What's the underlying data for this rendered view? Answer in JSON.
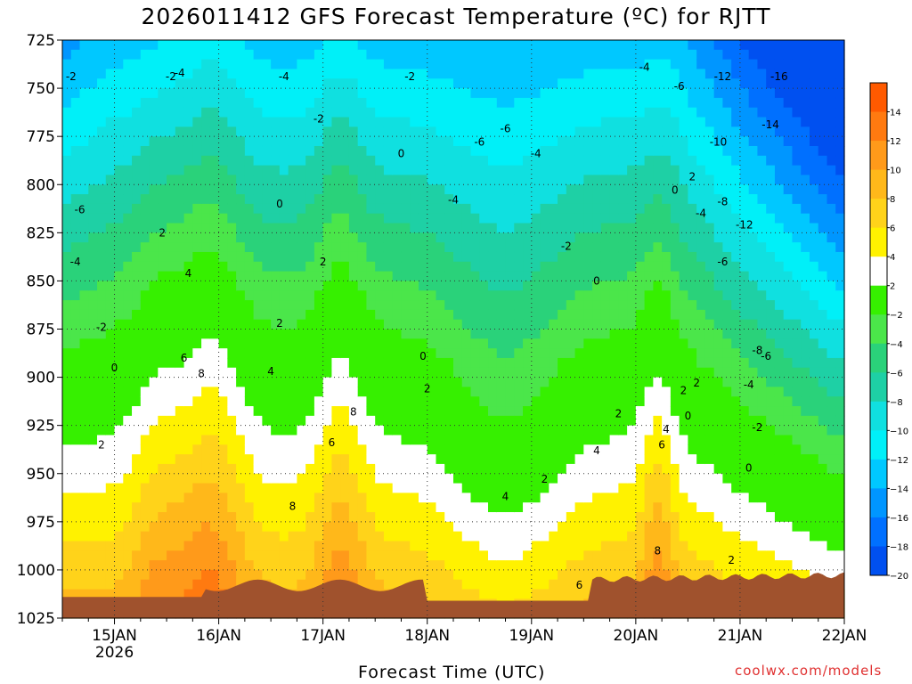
{
  "chart_data": {
    "type": "heatmap",
    "title": "2026011412 GFS Forecast Temperature (ºC) for RJTT",
    "xlabel": "Forecast Time (UTC)",
    "ylabel": "",
    "credit": "coolwx.com/models",
    "y_axis": {
      "scale": "pressure (hPa), inverted",
      "ticks": [
        725,
        750,
        775,
        800,
        825,
        850,
        875,
        900,
        925,
        950,
        975,
        1000,
        1025
      ],
      "ylim": [
        1025,
        725
      ]
    },
    "x_axis": {
      "ticks": [
        {
          "label": "15JAN",
          "sub": "2026",
          "hour": 0
        },
        {
          "label": "16JAN",
          "sub": "",
          "hour": 24
        },
        {
          "label": "17JAN",
          "sub": "",
          "hour": 48
        },
        {
          "label": "18JAN",
          "sub": "",
          "hour": 72
        },
        {
          "label": "19JAN",
          "sub": "",
          "hour": 96
        },
        {
          "label": "20JAN",
          "sub": "",
          "hour": 120
        },
        {
          "label": "21JAN",
          "sub": "",
          "hour": 144
        },
        {
          "label": "22JAN",
          "sub": "",
          "hour": 168
        }
      ],
      "xlim": [
        -12,
        168
      ]
    },
    "colorbar": {
      "levels": [
        -22,
        -20,
        -18,
        -16,
        -14,
        -12,
        -10,
        -8,
        -6,
        -4,
        -2,
        2,
        4,
        6,
        8,
        10,
        12,
        14,
        16
      ],
      "labels": [
        "14",
        "12",
        "10",
        "8",
        "6",
        "4",
        "2",
        "−2",
        "−4",
        "−6",
        "−8",
        "−10",
        "−12",
        "−14",
        "−16",
        "−18",
        "−20"
      ],
      "colors": [
        "#ff5a00",
        "#ff7a10",
        "#ff9a1a",
        "#ffb81a",
        "#ffd31a",
        "#fff200",
        "#ffffff",
        "#36f000",
        "#4be64a",
        "#2ad27a",
        "#1ed0a5",
        "#10e0e0",
        "#00f0f8",
        "#00c8ff",
        "#0096ff",
        "#0070ff",
        "#0050f0"
      ]
    },
    "grid": true,
    "contour_labels": [
      {
        "t": -10,
        "p": 744,
        "v": "-2"
      },
      {
        "t": 13,
        "p": 744,
        "v": "-2"
      },
      {
        "t": 15,
        "p": 742,
        "v": "-4"
      },
      {
        "t": 39,
        "p": 744,
        "v": "-4"
      },
      {
        "t": 68,
        "p": 744,
        "v": "-2"
      },
      {
        "t": 47,
        "p": 766,
        "v": "-2"
      },
      {
        "t": 66,
        "p": 784,
        "v": "0"
      },
      {
        "t": 38,
        "p": 810,
        "v": "0"
      },
      {
        "t": 78,
        "p": 808,
        "v": "-4"
      },
      {
        "t": 84,
        "p": 778,
        "v": "-6"
      },
      {
        "t": 90,
        "p": 771,
        "v": "-6"
      },
      {
        "t": 97,
        "p": 784,
        "v": "-4"
      },
      {
        "t": 122,
        "p": 739,
        "v": "-4"
      },
      {
        "t": 130,
        "p": 749,
        "v": "-6"
      },
      {
        "t": 140,
        "p": 744,
        "v": "-12"
      },
      {
        "t": 153,
        "p": 744,
        "v": "-16"
      },
      {
        "t": 151,
        "p": 769,
        "v": "-14"
      },
      {
        "t": 139,
        "p": 778,
        "v": "-10"
      },
      {
        "t": 129,
        "p": 803,
        "v": "0"
      },
      {
        "t": 133,
        "p": 796,
        "v": "2"
      },
      {
        "t": 140,
        "p": 809,
        "v": "-8"
      },
      {
        "t": 145,
        "p": 821,
        "v": "-12"
      },
      {
        "t": 135,
        "p": 815,
        "v": "-4"
      },
      {
        "t": 140,
        "p": 840,
        "v": "-6"
      },
      {
        "t": 104,
        "p": 832,
        "v": "-2"
      },
      {
        "t": 111,
        "p": 850,
        "v": "0"
      },
      {
        "t": 0,
        "p": 895,
        "v": "0"
      },
      {
        "t": -8,
        "p": 813,
        "v": "-6"
      },
      {
        "t": -9,
        "p": 840,
        "v": "-4"
      },
      {
        "t": -3,
        "p": 874,
        "v": "-2"
      },
      {
        "t": 11,
        "p": 825,
        "v": "2"
      },
      {
        "t": 17,
        "p": 846,
        "v": "4"
      },
      {
        "t": 16,
        "p": 890,
        "v": "6"
      },
      {
        "t": 20,
        "p": 898,
        "v": "8"
      },
      {
        "t": 38,
        "p": 872,
        "v": "2"
      },
      {
        "t": 48,
        "p": 840,
        "v": "2"
      },
      {
        "t": 36,
        "p": 897,
        "v": "4"
      },
      {
        "t": 50,
        "p": 934,
        "v": "6"
      },
      {
        "t": 55,
        "p": 918,
        "v": "8"
      },
      {
        "t": 41,
        "p": 967,
        "v": "8"
      },
      {
        "t": 72,
        "p": 906,
        "v": "2"
      },
      {
        "t": 71,
        "p": 889,
        "v": "0"
      },
      {
        "t": 90,
        "p": 962,
        "v": "4"
      },
      {
        "t": 99,
        "p": 953,
        "v": "2"
      },
      {
        "t": 116,
        "p": 919,
        "v": "2"
      },
      {
        "t": 111,
        "p": 938,
        "v": "4"
      },
      {
        "t": 127,
        "p": 927,
        "v": "4"
      },
      {
        "t": 126,
        "p": 935,
        "v": "6"
      },
      {
        "t": 125,
        "p": 990,
        "v": "8"
      },
      {
        "t": 107,
        "p": 1008,
        "v": "6"
      },
      {
        "t": 134,
        "p": 903,
        "v": "2"
      },
      {
        "t": 131,
        "p": 907,
        "v": "2"
      },
      {
        "t": 132,
        "p": 920,
        "v": "0"
      },
      {
        "t": 146,
        "p": 904,
        "v": "-4"
      },
      {
        "t": 148,
        "p": 926,
        "v": "-2"
      },
      {
        "t": 146,
        "p": 947,
        "v": "0"
      },
      {
        "t": 148,
        "p": 886,
        "v": "-8"
      },
      {
        "t": 150,
        "p": 889,
        "v": "-6"
      },
      {
        "t": 142,
        "p": 995,
        "v": "2"
      },
      {
        "t": -3,
        "p": 935,
        "v": "2"
      }
    ]
  }
}
